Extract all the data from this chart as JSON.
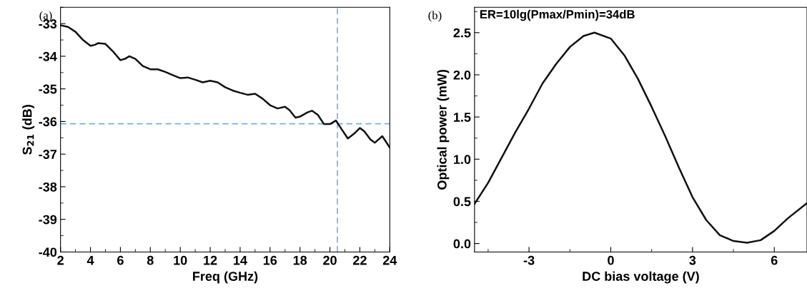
{
  "chart_data": [
    {
      "type": "line",
      "title": "(a)",
      "xlabel": "Freq (GHz)",
      "ylabel": "S$_{21}$ (dB)",
      "xlim": [
        2,
        24
      ],
      "xticks": [
        2,
        4,
        6,
        8,
        10,
        12,
        14,
        16,
        18,
        20,
        22,
        24
      ],
      "ylim": [
        -40,
        -32.5
      ],
      "yticks": [
        -40,
        -39,
        -38,
        -37,
        -36,
        -35,
        -34,
        -33
      ],
      "grid": false,
      "legend": false,
      "series": [
        {
          "color": "#111111",
          "x": [
            2,
            2.5,
            3,
            3.5,
            4,
            4.3,
            4.5,
            5,
            5.5,
            6,
            6.3,
            6.6,
            7,
            7.5,
            8,
            8.5,
            9,
            9.5,
            10,
            10.5,
            11,
            11.5,
            12,
            12.5,
            13,
            13.5,
            14,
            14.5,
            15,
            15.5,
            16,
            16.5,
            17,
            17.3,
            17.7,
            18,
            18.5,
            18.8,
            19.2,
            19.6,
            20,
            20.4,
            20.8,
            21.2,
            21.6,
            22,
            22.3,
            22.7,
            23,
            23.5,
            24
          ],
          "values": [
            -33.05,
            -33.1,
            -33.25,
            -33.5,
            -33.68,
            -33.65,
            -33.6,
            -33.62,
            -33.85,
            -34.12,
            -34.08,
            -34.0,
            -34.08,
            -34.3,
            -34.4,
            -34.4,
            -34.48,
            -34.58,
            -34.67,
            -34.65,
            -34.72,
            -34.8,
            -34.75,
            -34.8,
            -34.95,
            -35.05,
            -35.12,
            -35.18,
            -35.15,
            -35.3,
            -35.5,
            -35.6,
            -35.55,
            -35.65,
            -35.88,
            -35.85,
            -35.72,
            -35.67,
            -35.8,
            -36.08,
            -36.08,
            -35.97,
            -36.25,
            -36.52,
            -36.38,
            -36.2,
            -36.3,
            -36.55,
            -36.65,
            -36.45,
            -36.8
          ]
        }
      ],
      "ref_lines": [
        {
          "axis": "y",
          "value": -36.07,
          "color": "#7aaedc",
          "line_style": "dashed"
        },
        {
          "axis": "x",
          "value": 20.5,
          "color": "#7aaedc",
          "line_style": "dashed"
        }
      ]
    },
    {
      "type": "line",
      "title": "(b)",
      "xlabel": "DC bias voltage (V)",
      "ylabel": "Optical power (mW)",
      "xlim": [
        -5,
        7.2
      ],
      "xticks": [
        -3,
        0,
        3,
        6
      ],
      "ylim": [
        -0.1,
        2.8
      ],
      "yticks": [
        {
          "value": 0,
          "label": "0.0"
        },
        0.5,
        {
          "value": 1,
          "label": "1.0"
        },
        1.5,
        {
          "value": 2,
          "label": "2.0"
        },
        2.5
      ],
      "grid": false,
      "legend": false,
      "annotations": [
        "ER=10lg(Pmax/Pmin)=34dB"
      ],
      "series": [
        {
          "color": "#111111",
          "x": [
            -5,
            -4.5,
            -4,
            -3.5,
            -3,
            -2.5,
            -2,
            -1.5,
            -1,
            -0.6,
            0,
            0.5,
            1,
            1.5,
            2,
            2.5,
            3,
            3.5,
            4,
            4.5,
            5,
            5.5,
            6,
            6.5,
            7.2
          ],
          "values": [
            0.47,
            0.72,
            1.02,
            1.32,
            1.6,
            1.9,
            2.13,
            2.33,
            2.46,
            2.5,
            2.43,
            2.23,
            1.95,
            1.62,
            1.27,
            0.9,
            0.55,
            0.28,
            0.1,
            0.03,
            0.01,
            0.04,
            0.15,
            0.3,
            0.48
          ]
        }
      ]
    }
  ]
}
